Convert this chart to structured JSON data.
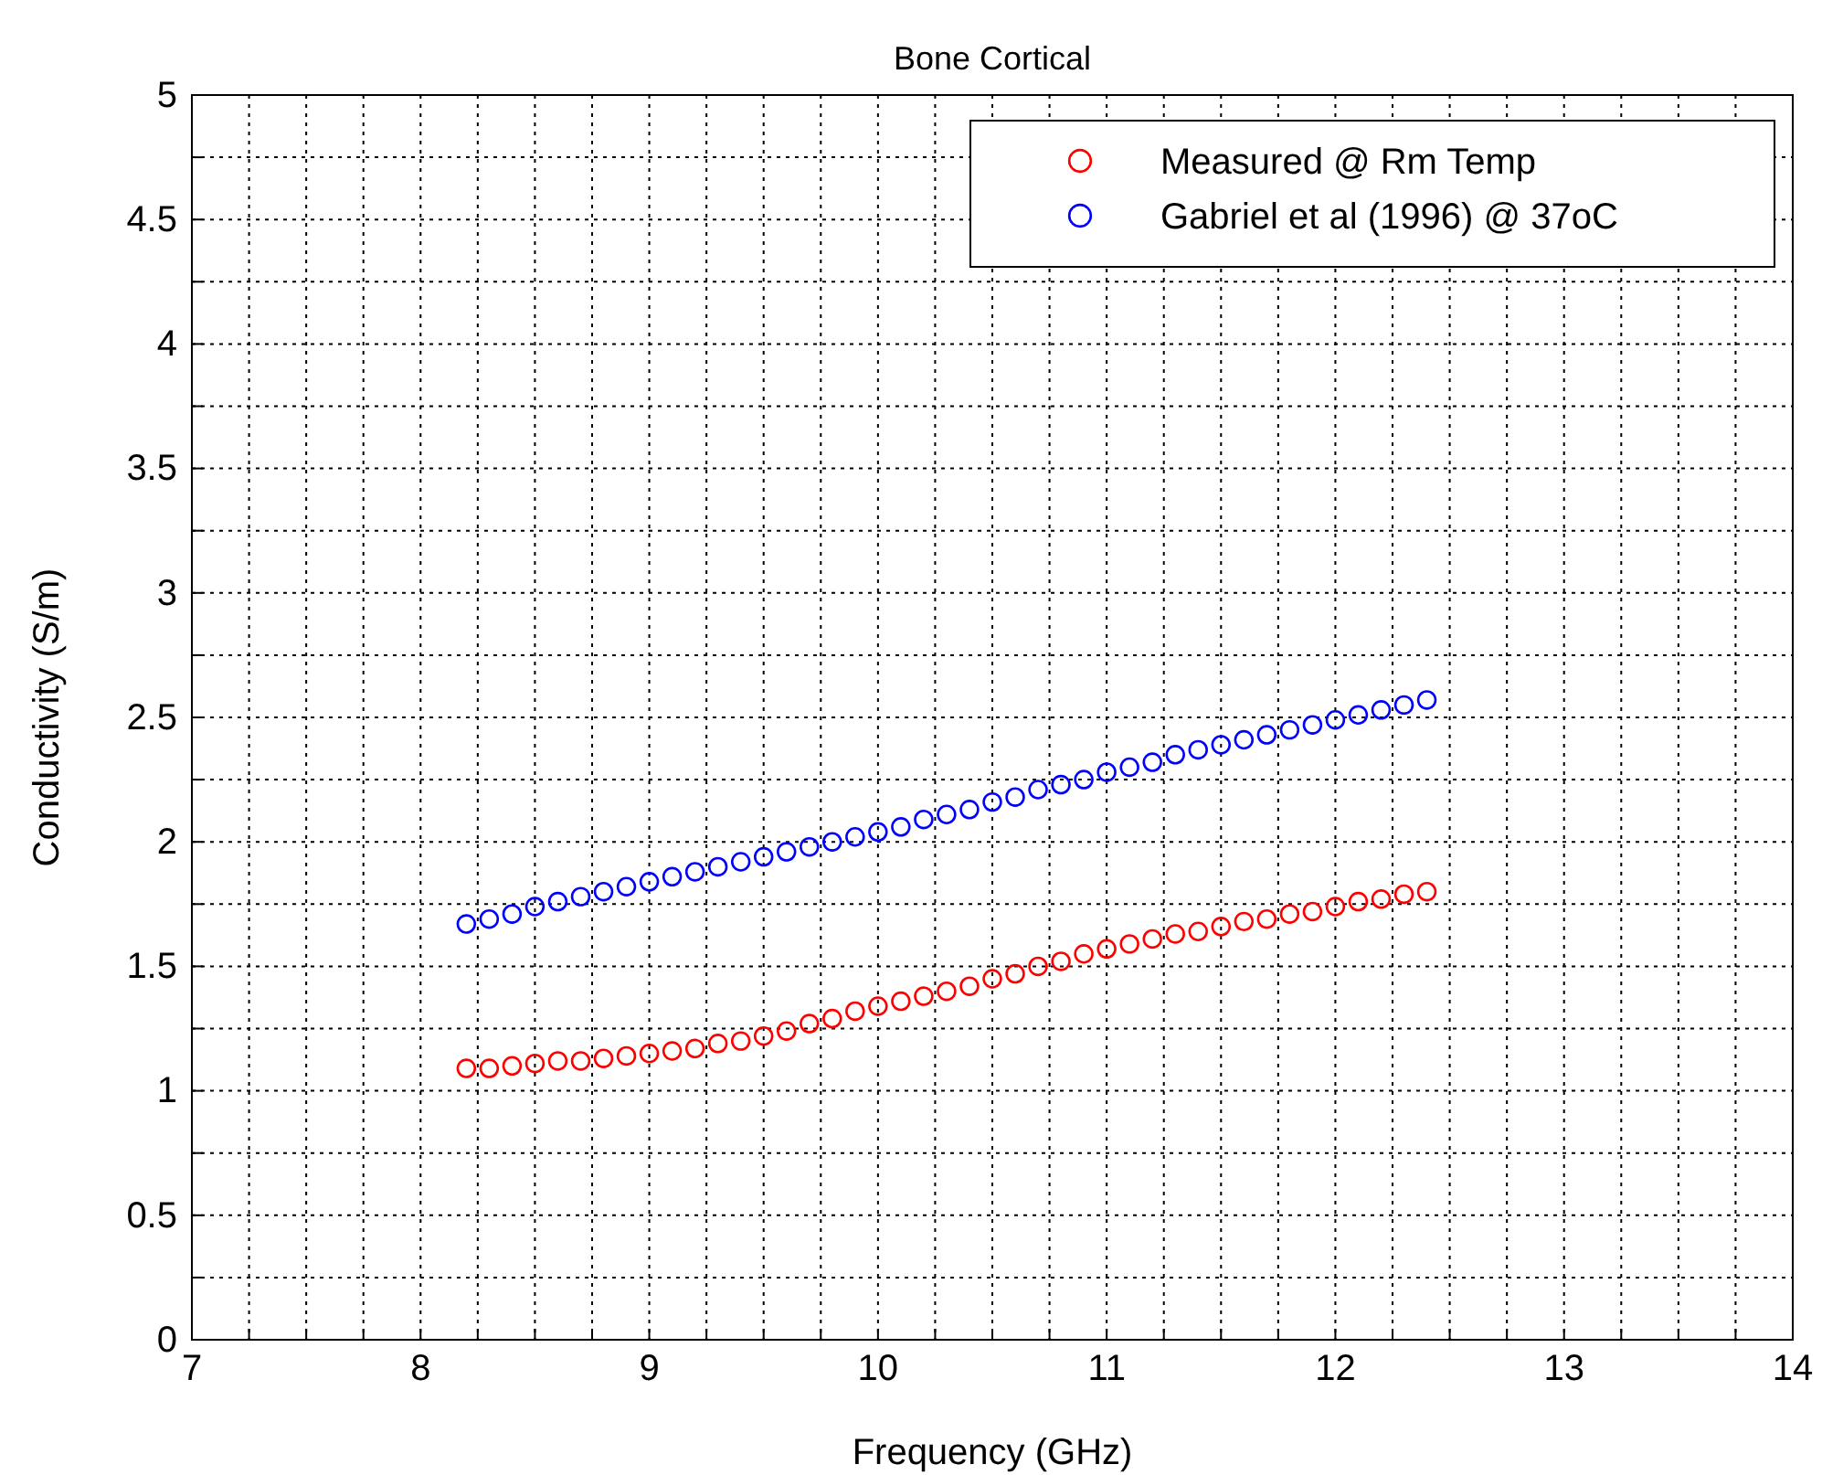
{
  "chart_data": {
    "type": "scatter",
    "title": "Bone Cortical",
    "xlabel": "Frequency (GHz)",
    "ylabel": "Conductivity (S/m)",
    "xlim": [
      7,
      14
    ],
    "ylim": [
      0,
      5
    ],
    "xticks": [
      7,
      {
        "value": 7.25,
        "label": null
      },
      {
        "value": 7.5,
        "label": null
      },
      {
        "value": 7.75,
        "label": null
      },
      8,
      {
        "value": 8.25,
        "label": null
      },
      {
        "value": 8.5,
        "label": null
      },
      {
        "value": 8.75,
        "label": null
      },
      9,
      {
        "value": 9.25,
        "label": null
      },
      {
        "value": 9.5,
        "label": null
      },
      {
        "value": 9.75,
        "label": null
      },
      10,
      {
        "value": 10.25,
        "label": null
      },
      {
        "value": 10.5,
        "label": null
      },
      {
        "value": 10.75,
        "label": null
      },
      11,
      {
        "value": 11.25,
        "label": null
      },
      {
        "value": 11.5,
        "label": null
      },
      {
        "value": 11.75,
        "label": null
      },
      12,
      {
        "value": 12.25,
        "label": null
      },
      {
        "value": 12.5,
        "label": null
      },
      {
        "value": 12.75,
        "label": null
      },
      13,
      {
        "value": 13.25,
        "label": null
      },
      {
        "value": 13.5,
        "label": null
      },
      {
        "value": 13.75,
        "label": null
      },
      14
    ],
    "yticks": [
      0,
      {
        "value": 0.25,
        "label": null
      },
      0.5,
      {
        "value": 0.75,
        "label": null
      },
      1,
      {
        "value": 1.25,
        "label": null
      },
      1.5,
      {
        "value": 1.75,
        "label": null
      },
      2,
      {
        "value": 2.25,
        "label": null
      },
      2.5,
      {
        "value": 2.75,
        "label": null
      },
      3,
      {
        "value": 3.25,
        "label": null
      },
      3.5,
      {
        "value": 3.75,
        "label": null
      },
      4,
      {
        "value": 4.25,
        "label": null
      },
      4.5,
      {
        "value": 4.75,
        "label": null
      },
      5
    ],
    "grid": true,
    "legend": "top right",
    "marker": "circle",
    "x": [
      8.2,
      8.3,
      8.4,
      8.5,
      8.6,
      8.7,
      8.8,
      8.9,
      9.0,
      9.1,
      9.2,
      9.3,
      9.4,
      9.5,
      9.6,
      9.7,
      9.8,
      9.9,
      10.0,
      10.1,
      10.2,
      10.3,
      10.4,
      10.5,
      10.6,
      10.7,
      10.8,
      10.9,
      11.0,
      11.1,
      11.2,
      11.3,
      11.4,
      11.5,
      11.6,
      11.7,
      11.8,
      11.9,
      12.0,
      12.1,
      12.2,
      12.3,
      12.4
    ],
    "series": [
      {
        "name": "Measured @ Rm Temp",
        "color": "#ff0000",
        "values": [
          1.09,
          1.09,
          1.1,
          1.11,
          1.12,
          1.12,
          1.13,
          1.14,
          1.15,
          1.16,
          1.17,
          1.19,
          1.2,
          1.22,
          1.24,
          1.27,
          1.29,
          1.32,
          1.34,
          1.36,
          1.38,
          1.4,
          1.42,
          1.45,
          1.47,
          1.5,
          1.52,
          1.55,
          1.57,
          1.59,
          1.61,
          1.63,
          1.64,
          1.66,
          1.68,
          1.69,
          1.71,
          1.72,
          1.74,
          1.76,
          1.77,
          1.79,
          1.8
        ]
      },
      {
        "name": "Gabriel et al (1996) @ 37oC",
        "color": "#0000ff",
        "values": [
          1.67,
          1.69,
          1.71,
          1.74,
          1.76,
          1.78,
          1.8,
          1.82,
          1.84,
          1.86,
          1.88,
          1.9,
          1.92,
          1.94,
          1.96,
          1.98,
          2.0,
          2.02,
          2.04,
          2.06,
          2.09,
          2.11,
          2.13,
          2.16,
          2.18,
          2.21,
          2.23,
          2.25,
          2.28,
          2.3,
          2.32,
          2.35,
          2.37,
          2.39,
          2.41,
          2.43,
          2.45,
          2.47,
          2.49,
          2.51,
          2.53,
          2.55,
          2.57
        ]
      }
    ]
  }
}
